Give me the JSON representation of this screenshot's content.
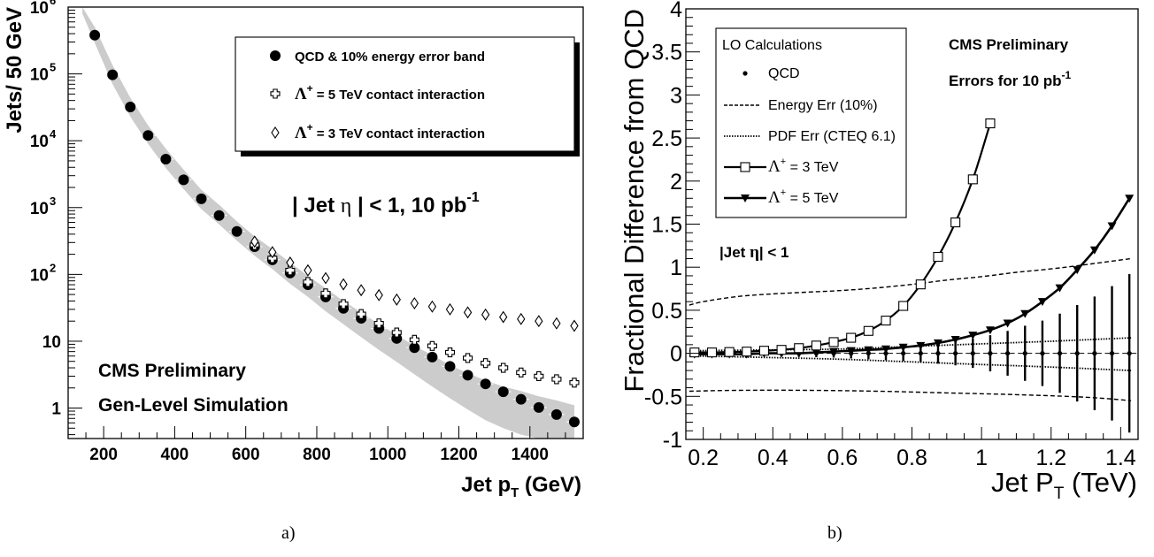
{
  "chart_data": [
    {
      "panel": "a",
      "type": "scatter",
      "y_log": true,
      "xlabel": "Jet p",
      "xlabel_sub": "T",
      "xlabel_unit": " (GeV)",
      "ylabel": "Jets/ 50 GeV",
      "xlim": [
        100,
        1550
      ],
      "ylim": [
        0.35,
        1000000
      ],
      "x_ticks": [
        200,
        400,
        600,
        800,
        1000,
        1200,
        1400
      ],
      "y_ticks": [
        {
          "value": 1,
          "label": "1"
        },
        {
          "value": 10,
          "label": "10"
        },
        {
          "value": 100,
          "base": "10",
          "exp": "2"
        },
        {
          "value": 1000,
          "base": "10",
          "exp": "3"
        },
        {
          "value": 10000,
          "base": "10",
          "exp": "4"
        },
        {
          "value": 100000,
          "base": "10",
          "exp": "5"
        },
        {
          "value": 1000000,
          "base": "10",
          "exp": "6"
        }
      ],
      "band": {
        "x": [
          140,
          175,
          225,
          275,
          325,
          375,
          425,
          475,
          525,
          575,
          625,
          675,
          725,
          775,
          825,
          875,
          925,
          975,
          1025,
          1075,
          1125,
          1175,
          1225,
          1275,
          1325,
          1375,
          1425,
          1475,
          1525
        ],
        "low": [
          800000,
          290000,
          70000,
          23000,
          9000,
          3900,
          1900,
          950,
          560,
          320,
          190,
          120,
          72,
          46,
          28,
          18,
          11.5,
          7.4,
          4.9,
          3.2,
          2.1,
          1.4,
          0.95,
          0.66,
          0.5,
          0.4,
          0.35,
          0.35,
          0.35
        ],
        "high": [
          1000000,
          500000,
          135000,
          44000,
          17000,
          7600,
          3700,
          1850,
          1100,
          620,
          370,
          240,
          150,
          95,
          62,
          40,
          27,
          18,
          12.5,
          8.5,
          6.2,
          4.4,
          3.3,
          2.6,
          2.1,
          1.8,
          1.5,
          1.3,
          1.1
        ]
      },
      "series": [
        {
          "name": "QCD  &  10% energy error band",
          "marker": "circle",
          "x": [
            175,
            225,
            275,
            325,
            375,
            425,
            475,
            525,
            575,
            625,
            675,
            725,
            775,
            825,
            875,
            925,
            975,
            1025,
            1075,
            1125,
            1175,
            1225,
            1275,
            1325,
            1375,
            1425,
            1475,
            1525
          ],
          "y": [
            380000,
            97000,
            32000,
            12000,
            5300,
            2600,
            1350,
            760,
            440,
            260,
            165,
            105,
            70,
            46,
            31,
            22,
            15.5,
            11,
            8,
            5.8,
            4.2,
            3.1,
            2.3,
            1.75,
            1.35,
            1.02,
            0.8,
            0.62
          ]
        },
        {
          "name": "= 5 TeV contact interaction",
          "name_prefix": "Λ",
          "name_sup": "+",
          "marker": "cross",
          "x": [
            625,
            675,
            725,
            775,
            825,
            875,
            925,
            975,
            1025,
            1075,
            1125,
            1175,
            1225,
            1275,
            1325,
            1375,
            1425,
            1475,
            1525
          ],
          "y": [
            275,
            175,
            115,
            77,
            52,
            36,
            25.5,
            18.5,
            13.5,
            10.5,
            8.5,
            6.8,
            5.6,
            4.7,
            4,
            3.4,
            3,
            2.7,
            2.4
          ]
        },
        {
          "name": "= 3 TeV contact interaction",
          "name_prefix": "Λ",
          "name_sup": "+",
          "marker": "diamond",
          "x": [
            625,
            675,
            725,
            775,
            825,
            875,
            925,
            975,
            1025,
            1075,
            1125,
            1175,
            1225,
            1275,
            1325,
            1375,
            1425,
            1475,
            1525
          ],
          "y": [
            310,
            215,
            150,
            115,
            88,
            71,
            58,
            49,
            42,
            37,
            33,
            30,
            27,
            25,
            23,
            21.5,
            20,
            18.5,
            17
          ]
        }
      ],
      "annotation": {
        "pre": "| Jet ",
        "eta": "η",
        "mid": " | < 1,    10 pb",
        "sup": "-1"
      },
      "watermark": [
        "CMS Preliminary",
        "Gen-Level Simulation"
      ],
      "caption": "a)"
    },
    {
      "panel": "b",
      "type": "line",
      "xlabel": "Jet P",
      "xlabel_sub": "T",
      "xlabel_unit": " (TeV)",
      "ylabel": "Fractional Difference from QCD",
      "xlim": [
        0.15,
        1.45
      ],
      "ylim": [
        -1,
        4
      ],
      "x_ticks": [
        {
          "value": 0.2,
          "label": "0.2"
        },
        {
          "value": 0.4,
          "label": "0.4"
        },
        {
          "value": 0.6,
          "label": "0.6"
        },
        {
          "value": 0.8,
          "label": "0.8"
        },
        {
          "value": 1.0,
          "label": "1"
        },
        {
          "value": 1.2,
          "label": "1.2"
        },
        {
          "value": 1.4,
          "label": "1.4"
        }
      ],
      "y_ticks": [
        {
          "value": -1,
          "label": "-1"
        },
        {
          "value": -0.5,
          "label": "-0.5"
        },
        {
          "value": 0,
          "label": "0"
        },
        {
          "value": 0.5,
          "label": "0.5"
        },
        {
          "value": 1,
          "label": "1"
        },
        {
          "value": 1.5,
          "label": "1.5"
        },
        {
          "value": 2,
          "label": "2"
        },
        {
          "value": 2.5,
          "label": "2.5"
        },
        {
          "value": 3,
          "label": "3"
        },
        {
          "value": 3.5,
          "label": "3.5"
        },
        {
          "value": 4,
          "label": "4"
        }
      ],
      "legend_title": "LO Calculations",
      "legend": [
        {
          "key": "qcd",
          "label": "QCD",
          "symbol": "dot"
        },
        {
          "key": "energy",
          "label": "Energy Err (10%)",
          "symbol": "dashed"
        },
        {
          "key": "pdf",
          "label": "PDF Err (CTEQ 6.1)",
          "symbol": "dotted"
        },
        {
          "key": "l3",
          "label": " = 3 TeV",
          "prefix": "Λ",
          "sup": "+",
          "symbol": "square-line"
        },
        {
          "key": "l5",
          "label": " = 5 TeV",
          "prefix": "Λ",
          "sup": "+",
          "symbol": "triangle-line"
        }
      ],
      "series": {
        "qcd": {
          "x": [
            0.175,
            0.225,
            0.275,
            0.325,
            0.375,
            0.425,
            0.475,
            0.525,
            0.575,
            0.625,
            0.675,
            0.725,
            0.775,
            0.825,
            0.875,
            0.925,
            0.975,
            1.025,
            1.075,
            1.125,
            1.175,
            1.225,
            1.275,
            1.325,
            1.375,
            1.425
          ],
          "y": [
            0,
            0,
            0,
            0,
            0,
            0,
            0,
            0,
            0,
            0,
            0,
            0,
            0,
            0,
            0,
            0,
            0,
            0,
            0,
            0,
            0,
            0,
            0,
            0,
            0,
            0
          ],
          "err": [
            0.02,
            0.02,
            0.02,
            0.025,
            0.03,
            0.035,
            0.04,
            0.045,
            0.05,
            0.06,
            0.07,
            0.08,
            0.09,
            0.1,
            0.12,
            0.14,
            0.17,
            0.21,
            0.26,
            0.32,
            0.38,
            0.46,
            0.56,
            0.66,
            0.78,
            0.92
          ]
        },
        "energy_upper": {
          "x": [
            0.16,
            0.2,
            0.3,
            0.4,
            0.5,
            0.6,
            0.7,
            0.8,
            0.9,
            1.0,
            1.1,
            1.2,
            1.3,
            1.43
          ],
          "y": [
            0.56,
            0.6,
            0.66,
            0.69,
            0.71,
            0.73,
            0.76,
            0.8,
            0.85,
            0.89,
            0.94,
            0.98,
            1.03,
            1.1
          ]
        },
        "energy_lower": {
          "x": [
            0.16,
            0.3,
            0.5,
            0.7,
            0.9,
            1.1,
            1.3,
            1.43
          ],
          "y": [
            -0.44,
            -0.43,
            -0.43,
            -0.44,
            -0.46,
            -0.48,
            -0.51,
            -0.55
          ]
        },
        "pdf_upper": {
          "x": [
            0.16,
            0.4,
            0.6,
            0.8,
            1.0,
            1.2,
            1.43
          ],
          "y": [
            0.03,
            0.04,
            0.05,
            0.08,
            0.11,
            0.14,
            0.18
          ]
        },
        "pdf_lower": {
          "x": [
            0.16,
            0.4,
            0.6,
            0.8,
            1.0,
            1.2,
            1.43
          ],
          "y": [
            -0.03,
            -0.05,
            -0.07,
            -0.1,
            -0.13,
            -0.16,
            -0.2
          ]
        },
        "l3": {
          "x": [
            0.175,
            0.225,
            0.275,
            0.325,
            0.375,
            0.425,
            0.475,
            0.525,
            0.575,
            0.625,
            0.675,
            0.725,
            0.775,
            0.825,
            0.875,
            0.925,
            0.975,
            1.025
          ],
          "y": [
            0.01,
            0.01,
            0.015,
            0.02,
            0.03,
            0.04,
            0.06,
            0.09,
            0.13,
            0.18,
            0.26,
            0.38,
            0.55,
            0.8,
            1.12,
            1.52,
            2.02,
            2.67
          ]
        },
        "l5": {
          "x": [
            0.175,
            0.225,
            0.275,
            0.325,
            0.375,
            0.425,
            0.475,
            0.525,
            0.575,
            0.625,
            0.675,
            0.725,
            0.775,
            0.825,
            0.875,
            0.925,
            0.975,
            1.025,
            1.075,
            1.125,
            1.175,
            1.225,
            1.275,
            1.325,
            1.375,
            1.425
          ],
          "y": [
            -0.01,
            -0.01,
            -0.01,
            -0.01,
            0,
            0,
            0,
            0.01,
            0.02,
            0.03,
            0.04,
            0.05,
            0.07,
            0.09,
            0.12,
            0.16,
            0.21,
            0.27,
            0.35,
            0.46,
            0.6,
            0.76,
            0.97,
            1.2,
            1.48,
            1.8
          ]
        }
      },
      "watermark": [
        "CMS Preliminary",
        "Errors for 10 pb"
      ],
      "watermark_sup": "-1",
      "annotation": {
        "pre": "|Jet ",
        "eta": "η",
        "post": "| < 1"
      },
      "caption": "b)"
    }
  ]
}
